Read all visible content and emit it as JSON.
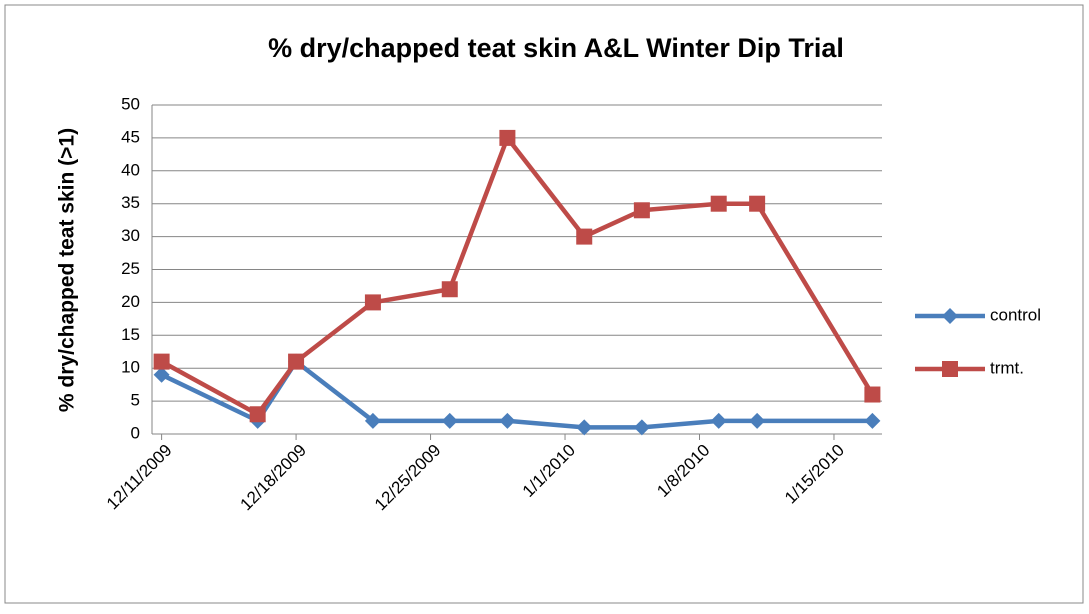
{
  "chart_data": {
    "type": "line",
    "title": "% dry/chapped teat skin A&L Winter Dip Trial",
    "y_label": "% dry/chapped  teat skin (>1)",
    "x": [
      "12/11/2009",
      "12/16/2009",
      "12/18/2009",
      "12/22/2009",
      "12/26/2009",
      "12/29/2009",
      "1/2/2010",
      "1/5/2010",
      "1/9/2010",
      "1/11/2010",
      "1/17/2010"
    ],
    "series": [
      {
        "name": "control",
        "color": "#4a7ebb",
        "marker": "diamond",
        "values": [
          9,
          2,
          11,
          2,
          2,
          2,
          1,
          1,
          2,
          2,
          2
        ]
      },
      {
        "name": "trmt.",
        "color": "#be4b48",
        "marker": "square",
        "values": [
          11,
          3,
          11,
          20,
          22,
          45,
          30,
          34,
          35,
          35,
          6
        ]
      }
    ],
    "xlim": [
      "12/11/2009",
      "1/17/2010"
    ],
    "xticks": [
      "12/11/2009",
      "12/18/2009",
      "12/25/2009",
      "1/1/2010",
      "1/8/2010",
      "1/15/2010"
    ],
    "ylim": [
      0,
      50
    ],
    "yticks": [
      0,
      5,
      10,
      15,
      20,
      25,
      30,
      35,
      40,
      45,
      50
    ],
    "grid": true,
    "legend": "right"
  }
}
